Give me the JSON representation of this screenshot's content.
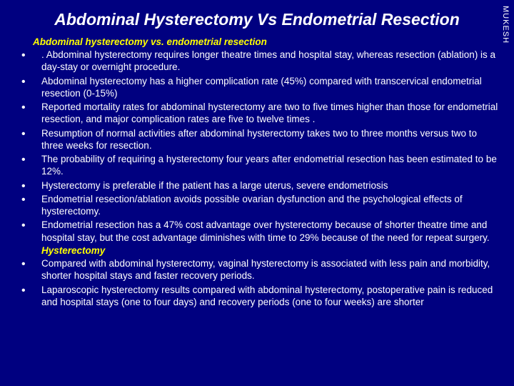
{
  "watermark": "MUKESH",
  "title": "Abdominal Hysterectomy Vs Endometrial Resection",
  "subheading1": "Abdominal hysterectomy vs. endometrial resection",
  "bullets": [
    ". Abdominal hysterectomy requires longer theatre times and hospital stay, whereas resection (ablation) is a day-stay or overnight procedure.",
    "Abdominal hysterectomy has a higher complication rate (45%) compared with transcervical endometrial resection (0-15%)",
    " Reported mortality rates for abdominal hysterectomy are two to five times higher than those for endometrial resection, and major complication rates are five to twelve times .",
    "Resumption of normal activities after abdominal hysterectomy takes two to three months versus two to three weeks for resection.",
    " The probability of requiring a hysterectomy four years after endometrial resection has been estimated to be 12%.",
    "Hysterectomy is preferable if the patient has a large uterus, severe endometriosis",
    "Endometrial resection/ablation avoids possible ovarian dysfunction and the psychological effects of hysterectomy.",
    "Endometrial resection has a 47% cost advantage over hysterectomy because of shorter theatre time and hospital stay, but the cost advantage diminishes with time to 29% because of the need for repeat surgery."
  ],
  "subheading2": "Hysterectomy",
  "bullets2": [
    "Compared with abdominal hysterectomy, vaginal hysterectomy is associated with less pain and morbidity, shorter hospital stays and faster recovery periods.",
    "Laparoscopic hysterectomy results compared with abdominal hysterectomy, postoperative pain is reduced and hospital stays (one to four days) and recovery periods (one to four weeks) are shorter"
  ],
  "colors": {
    "background": "#000080",
    "text": "#ffffff",
    "accent": "#ffff00"
  }
}
